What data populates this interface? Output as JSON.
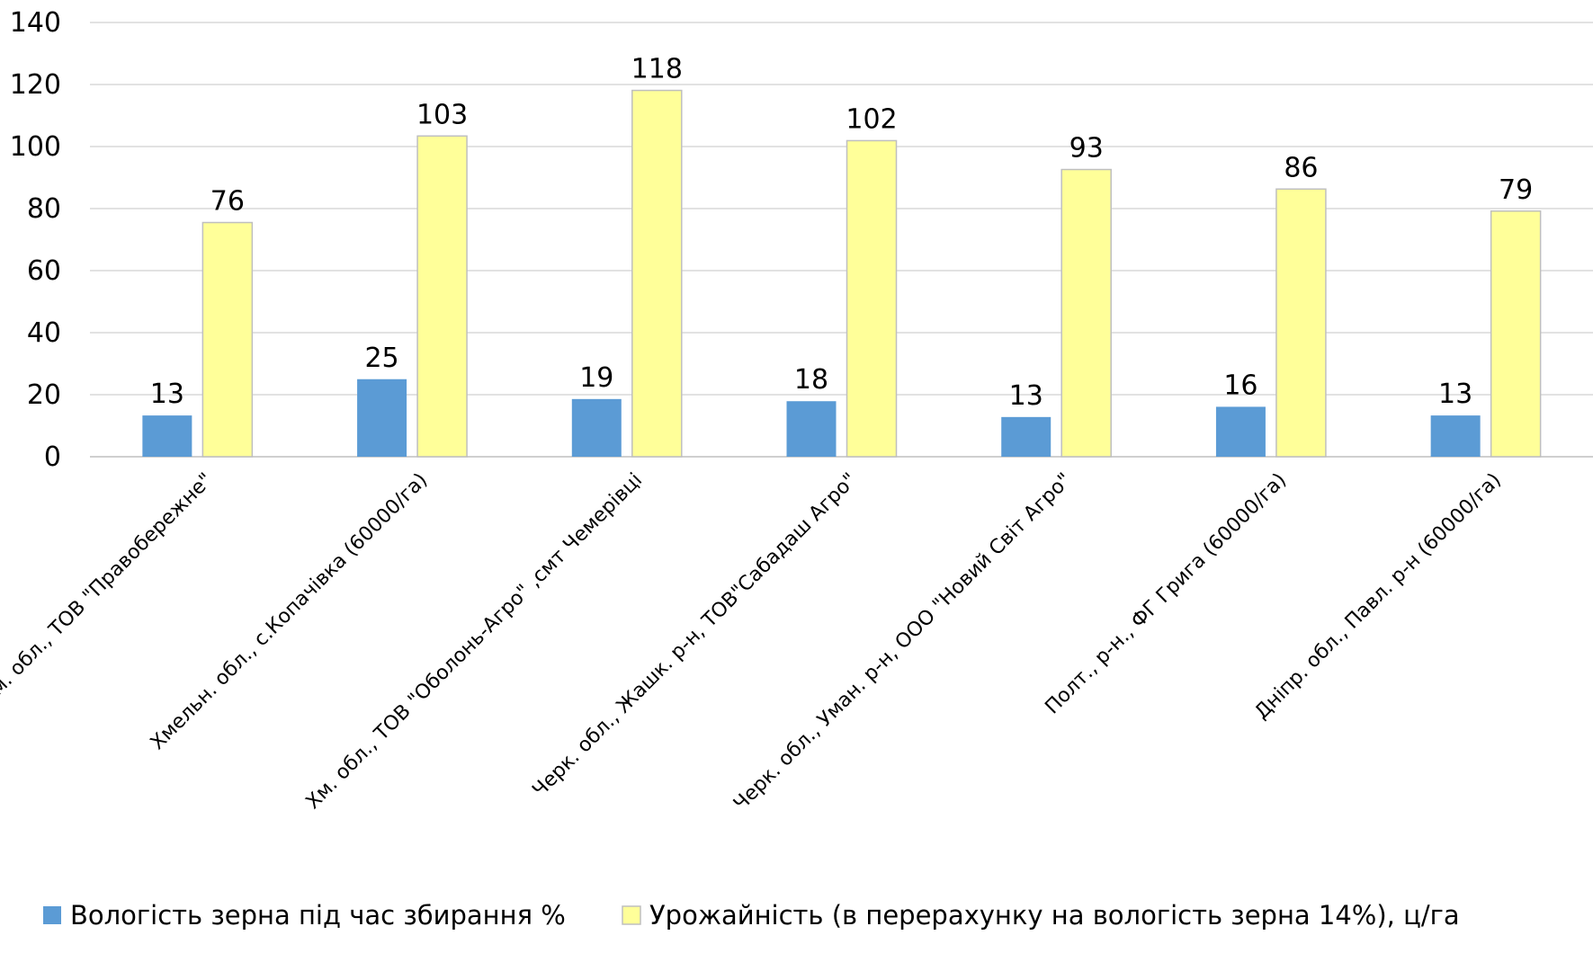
{
  "chart_data": {
    "type": "bar",
    "title": "",
    "xlabel": "",
    "ylabel": "",
    "ylim": [
      0,
      140
    ],
    "yticks": [
      0,
      20,
      40,
      60,
      80,
      100,
      120,
      140
    ],
    "grid": true,
    "legend_position": "bottom",
    "categories": [
      "Хм. обл., ТОВ \"Правобережне\"",
      "Хмельн. обл., с.Копачівка (60000/га)",
      "Хм. обл., ТОВ \"Оболонь-Агро\" ,смт Чемерівці",
      "Черк. обл., Жашк. р-н, ТОВ\"Сабадаш Агро\"",
      "Черк. обл., Уман. р-н, ООО \"Новий Світ Агро\"",
      "Полт., р-н., ФГ Грига (60000/га)",
      "Дніпр. обл., Павл. р-н (60000/га)"
    ],
    "series": [
      {
        "name": "Вологість зерна під час збирання %",
        "color": "#5b9bd5",
        "values": [
          13.3,
          25,
          18.6,
          17.9,
          12.8,
          16.1,
          13.3
        ],
        "labels": [
          "13",
          "25",
          "19",
          "18",
          "13",
          "16",
          "13"
        ]
      },
      {
        "name": "Урожайність  (в перерахунку на вологість зерна 14%), ц/га",
        "color": "#ffff99",
        "stroke": "#bfbfbf",
        "values": [
          75.5,
          103.4,
          118.1,
          101.9,
          92.6,
          86.3,
          79.2
        ],
        "labels": [
          "76",
          "103",
          "118",
          "102",
          "93",
          "86",
          "79"
        ]
      }
    ]
  }
}
